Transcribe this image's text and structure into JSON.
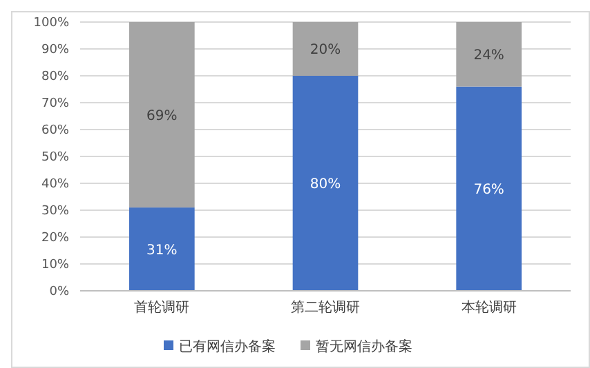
{
  "chart_data": {
    "type": "bar",
    "stacked": true,
    "categories": [
      "首轮调研",
      "第二轮调研",
      "本轮调研"
    ],
    "series": [
      {
        "name": "已有网信办备案",
        "color": "#4472c4",
        "values": [
          31,
          80,
          76
        ],
        "value_labels": [
          "31%",
          "80%",
          "76%"
        ]
      },
      {
        "name": "暂无网信办备案",
        "color": "#a5a5a5",
        "values": [
          69,
          20,
          24
        ],
        "value_labels": [
          "69%",
          "20%",
          "24%"
        ]
      }
    ],
    "ylim": [
      0,
      100
    ],
    "yticks": [
      {
        "value": 0,
        "label": "0%"
      },
      {
        "value": 10,
        "label": "10%"
      },
      {
        "value": 20,
        "label": "20%"
      },
      {
        "value": 30,
        "label": "30%"
      },
      {
        "value": 40,
        "label": "40%"
      },
      {
        "value": 50,
        "label": "50%"
      },
      {
        "value": 60,
        "label": "60%"
      },
      {
        "value": 70,
        "label": "70%"
      },
      {
        "value": 80,
        "label": "80%"
      },
      {
        "value": 90,
        "label": "90%"
      },
      {
        "value": 100,
        "label": "100%"
      }
    ],
    "grid": "y",
    "legend": "bottom"
  }
}
